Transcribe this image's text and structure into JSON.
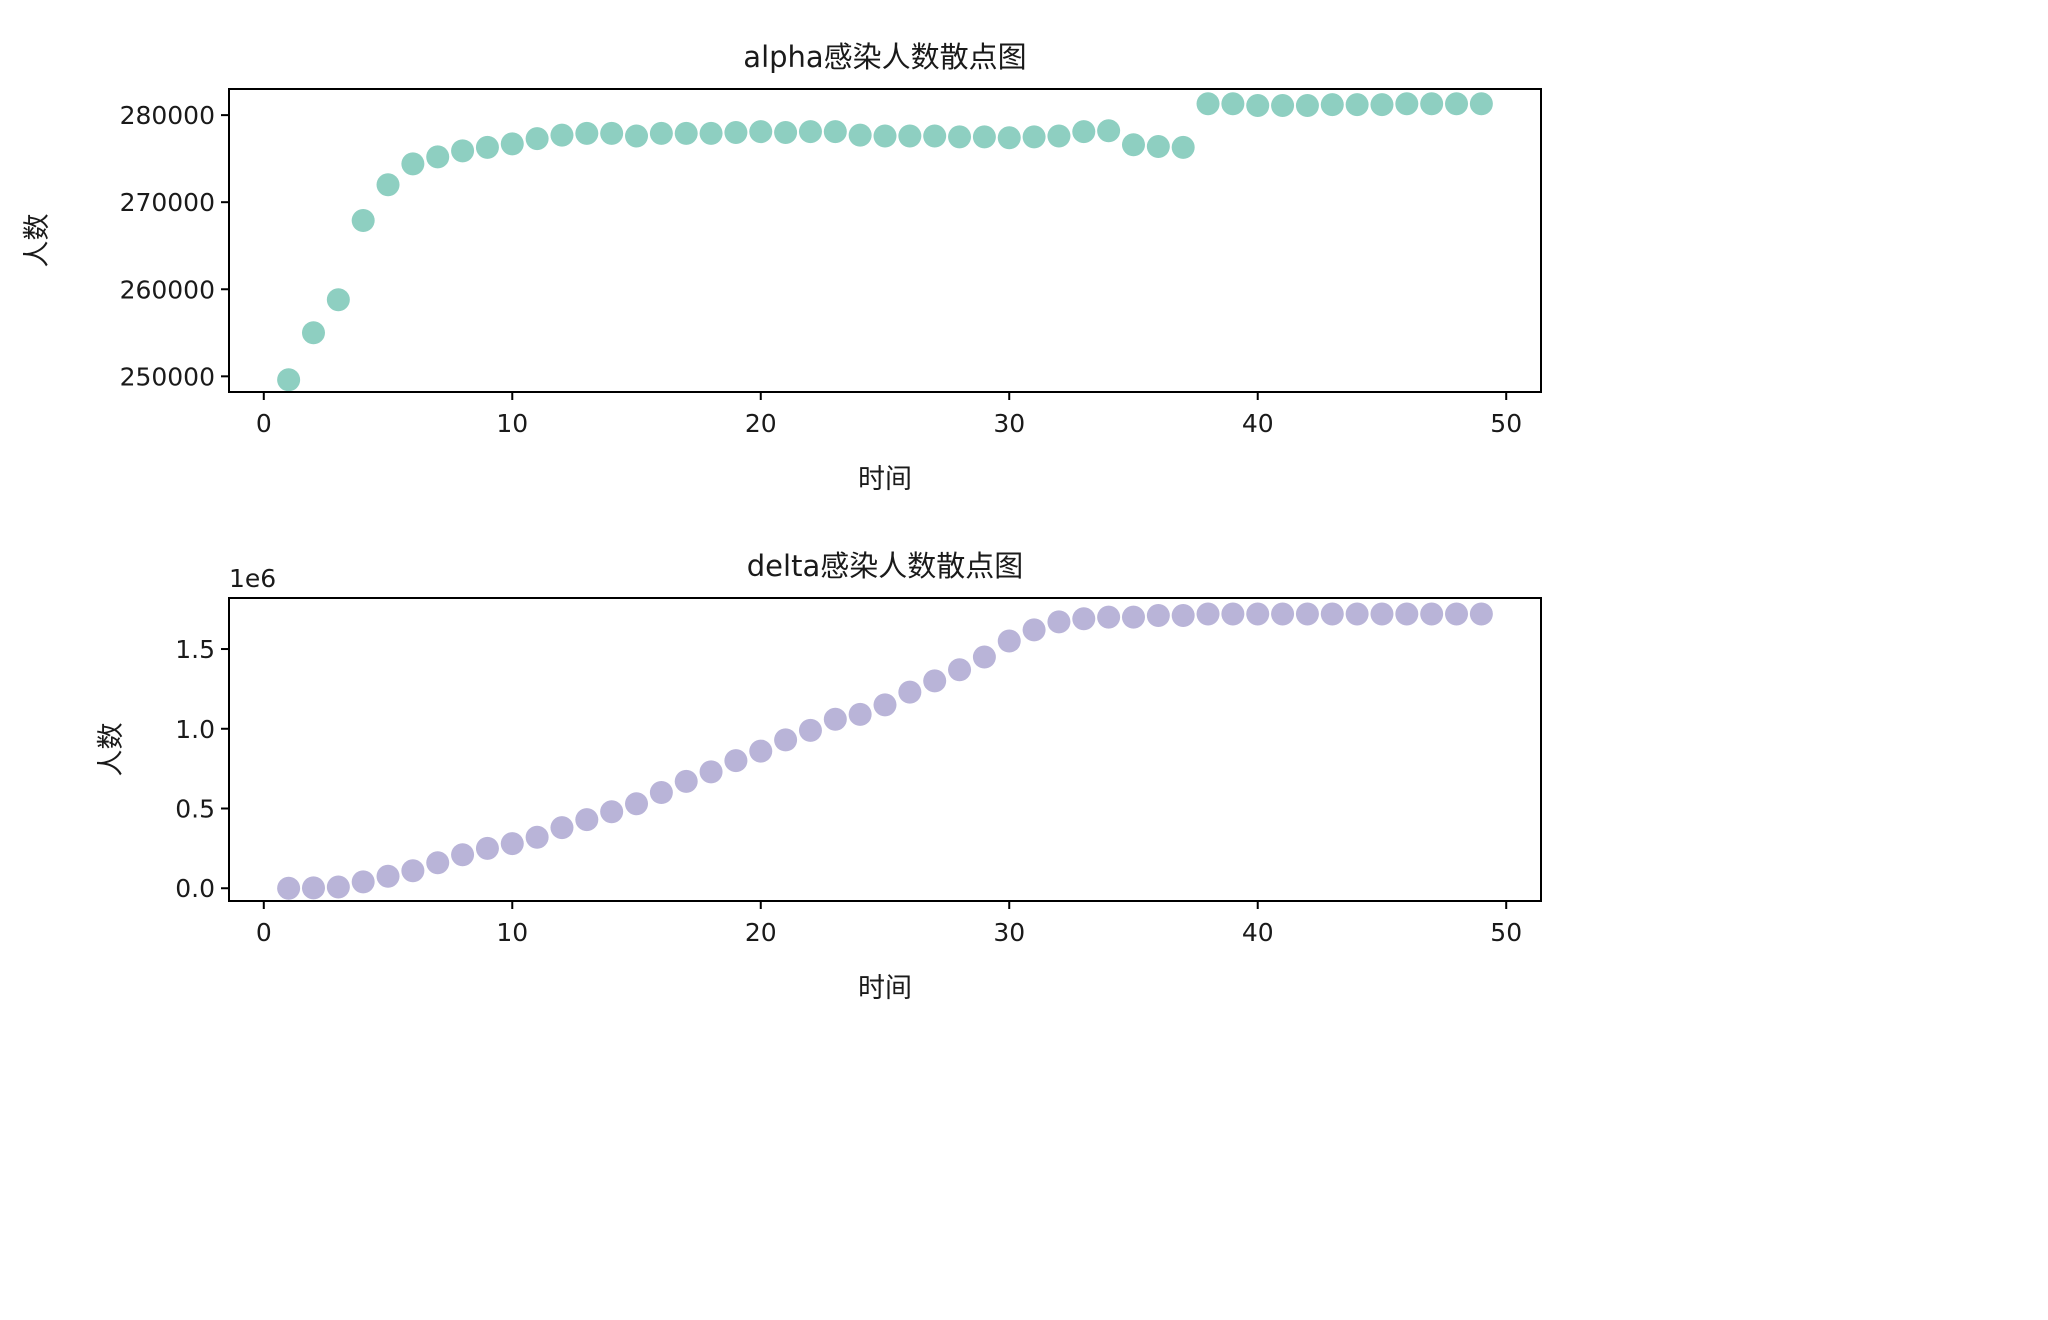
{
  "chart_data": [
    {
      "type": "scatter",
      "title": "alpha感染人数散点图",
      "xlabel": "时间",
      "ylabel": "人数",
      "xlim": [
        -1.4,
        51.4
      ],
      "ylim": [
        248200,
        283000
      ],
      "xticks": [
        0,
        10,
        20,
        30,
        40,
        50
      ],
      "yticks": [
        250000,
        260000,
        270000,
        280000
      ],
      "ytick_labels": [
        "250000",
        "260000",
        "270000",
        "280000"
      ],
      "offset_text": "",
      "color": "#8ecfc1",
      "grid": false,
      "series": [
        {
          "x": [
            1,
            2,
            3,
            4,
            5,
            6,
            7,
            8,
            9,
            10,
            11,
            12,
            13,
            14,
            15,
            16,
            17,
            18,
            19,
            20,
            21,
            22,
            23,
            24,
            25,
            26,
            27,
            28,
            29,
            30,
            31,
            32,
            33,
            34,
            35,
            36,
            37,
            38,
            39,
            40,
            41,
            42,
            43,
            44,
            45,
            46,
            47,
            48,
            49
          ],
          "y": [
            249600,
            255000,
            258800,
            267900,
            272000,
            274400,
            275200,
            275900,
            276300,
            276700,
            277300,
            277700,
            277900,
            277900,
            277600,
            277900,
            277900,
            277900,
            278000,
            278100,
            278000,
            278100,
            278100,
            277700,
            277600,
            277600,
            277600,
            277500,
            277500,
            277400,
            277500,
            277600,
            278100,
            278200,
            276600,
            276400,
            276300,
            281300,
            281300,
            281100,
            281100,
            281100,
            281200,
            281200,
            281200,
            281300,
            281300,
            281300,
            281300
          ]
        }
      ]
    },
    {
      "type": "scatter",
      "title": "delta感染人数散点图",
      "xlabel": "时间",
      "ylabel": "人数",
      "xlim": [
        -1.4,
        51.4
      ],
      "ylim": [
        -80000,
        1820000
      ],
      "xticks": [
        0,
        10,
        20,
        30,
        40,
        50
      ],
      "yticks": [
        0,
        500000,
        1000000,
        1500000
      ],
      "ytick_labels": [
        "0.0",
        "0.5",
        "1.0",
        "1.5"
      ],
      "offset_text": "1e6",
      "color": "#b9b4d8",
      "grid": false,
      "series": [
        {
          "x": [
            1,
            2,
            3,
            4,
            5,
            6,
            7,
            8,
            9,
            10,
            11,
            12,
            13,
            14,
            15,
            16,
            17,
            18,
            19,
            20,
            21,
            22,
            23,
            24,
            25,
            26,
            27,
            28,
            29,
            30,
            31,
            32,
            33,
            34,
            35,
            36,
            37,
            38,
            39,
            40,
            41,
            42,
            43,
            44,
            45,
            46,
            47,
            48,
            49
          ],
          "y": [
            0,
            2000,
            8000,
            40000,
            75000,
            110000,
            160000,
            210000,
            250000,
            280000,
            320000,
            380000,
            430000,
            480000,
            530000,
            600000,
            670000,
            730000,
            800000,
            860000,
            930000,
            990000,
            1060000,
            1090000,
            1150000,
            1230000,
            1300000,
            1370000,
            1450000,
            1550000,
            1620000,
            1670000,
            1690000,
            1700000,
            1700000,
            1710000,
            1710000,
            1720000,
            1720000,
            1720000,
            1720000,
            1720000,
            1720000,
            1720000,
            1720000,
            1720000,
            1720000,
            1720000,
            1720000
          ]
        }
      ]
    }
  ]
}
